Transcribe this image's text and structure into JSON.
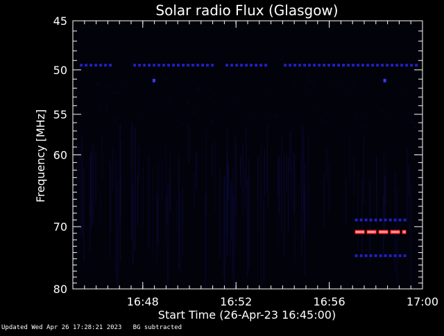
{
  "chart_data": {
    "type": "heatmap",
    "title": "Solar radio Flux (Glasgow)",
    "xlabel": "Start Time (26-Apr-23 16:45:00)",
    "ylabel": "Frequency [MHz]",
    "x_unit": "minutes after 16:45:00",
    "xlim": [
      0,
      15
    ],
    "ylim": [
      45,
      80
    ],
    "y_scale": "log",
    "y_inverted": true,
    "x_ticks": [
      {
        "value": 3,
        "label": "16:48"
      },
      {
        "value": 7,
        "label": "16:52"
      },
      {
        "value": 11,
        "label": "16:56"
      },
      {
        "value": 15,
        "label": "17:00"
      }
    ],
    "y_ticks": [
      {
        "value": 45,
        "label": "45"
      },
      {
        "value": 50,
        "label": "50"
      },
      {
        "value": 55,
        "label": "55"
      },
      {
        "value": 60,
        "label": "60"
      },
      {
        "value": 70,
        "label": "70"
      },
      {
        "value": 80,
        "label": "80"
      }
    ],
    "y_minor_ticks": [
      46,
      47,
      48,
      49,
      51,
      52,
      53,
      54,
      56,
      57,
      58,
      59,
      61,
      62,
      63,
      64,
      65,
      66,
      67,
      68,
      69,
      71,
      72,
      73,
      74,
      75,
      76,
      77,
      78,
      79
    ],
    "x_minor_step": 0.5,
    "colors": {
      "background": "#000000",
      "axes": "#ffffff",
      "weak_signal": "#0a0a3a",
      "medium_signal": "#2020c0",
      "strong_signal": "#3a3aff",
      "hot_signal": "#ff2020",
      "hot_core": "#ffd0d0"
    },
    "features": [
      {
        "name": "band-49-5",
        "freq": 49.5,
        "x_start": 0.3,
        "x_end": 14.9,
        "intensity": "medium",
        "gaps": [
          [
            1.7,
            2.4
          ],
          [
            6.1,
            6.5
          ],
          [
            8.4,
            8.9
          ]
        ]
      },
      {
        "name": "spot-51-2a",
        "freq": 51.2,
        "x_start": 3.45,
        "x_end": 3.55,
        "intensity": "strong"
      },
      {
        "name": "spot-51-2b",
        "freq": 51.2,
        "x_start": 13.35,
        "x_end": 13.45,
        "intensity": "strong"
      },
      {
        "name": "band-69",
        "freq": 69.0,
        "x_start": 12.1,
        "x_end": 14.3,
        "intensity": "medium"
      },
      {
        "name": "band-70-8",
        "freq": 70.8,
        "x_start": 12.1,
        "x_end": 14.3,
        "intensity": "hot"
      },
      {
        "name": "band-74-5",
        "freq": 74.5,
        "x_start": 12.1,
        "x_end": 14.3,
        "intensity": "medium"
      }
    ]
  },
  "footer": {
    "updated": "Updated Wed Apr 26 17:28:21 2023",
    "note": "BG subtracted"
  }
}
